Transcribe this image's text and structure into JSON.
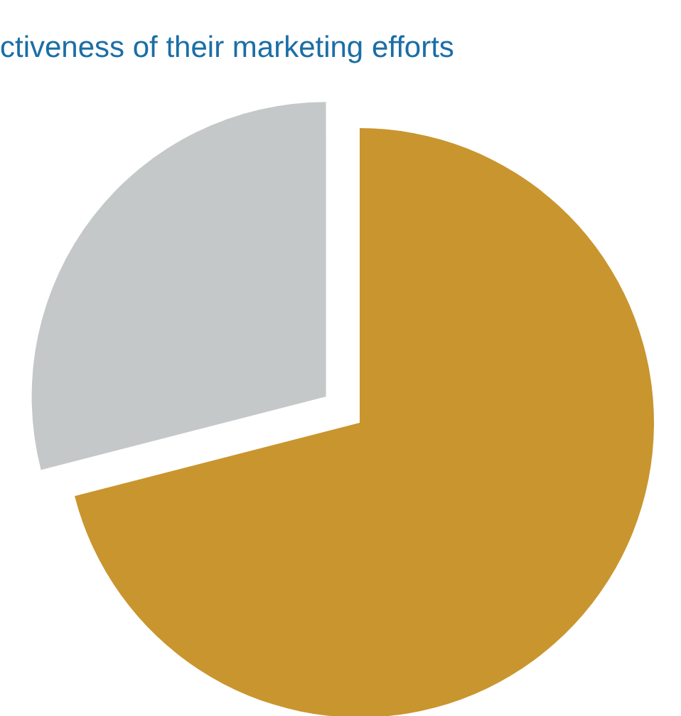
{
  "chart_data": {
    "type": "pie",
    "title": "ctiveness of their marketing efforts",
    "categories": [
      null,
      null
    ],
    "values": [
      71,
      29
    ],
    "colors": [
      "#c9952e",
      "#c4c8c9"
    ]
  }
}
